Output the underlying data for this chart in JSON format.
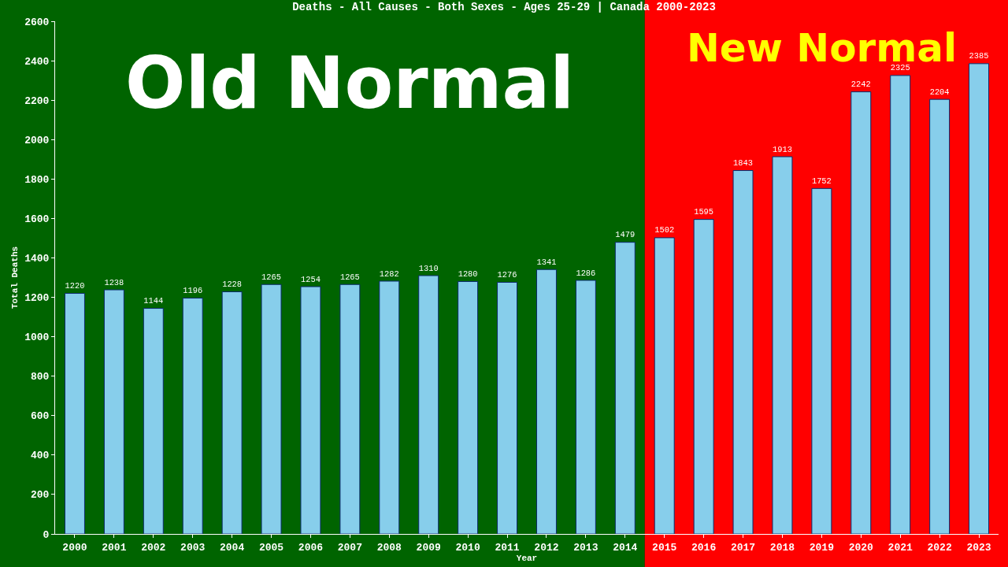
{
  "chart_data": {
    "type": "bar",
    "title": "Deaths - All Causes - Both Sexes - Ages 25-29 | Canada 2000-2023",
    "xlabel": "Year",
    "ylabel": "Total Deaths",
    "categories": [
      "2000",
      "2001",
      "2002",
      "2003",
      "2004",
      "2005",
      "2006",
      "2007",
      "2008",
      "2009",
      "2010",
      "2011",
      "2012",
      "2013",
      "2014",
      "2015",
      "2016",
      "2017",
      "2018",
      "2019",
      "2020",
      "2021",
      "2022",
      "2023"
    ],
    "values": [
      1220,
      1238,
      1144,
      1196,
      1228,
      1265,
      1254,
      1265,
      1282,
      1310,
      1280,
      1276,
      1341,
      1286,
      1479,
      1502,
      1595,
      1843,
      1913,
      1752,
      2242,
      2325,
      2204,
      2385
    ],
    "color": "#87ceeb",
    "data_labels": true,
    "ylim": [
      0,
      2600
    ],
    "yticks": [
      0,
      200,
      400,
      600,
      800,
      1000,
      1200,
      1400,
      1600,
      1800,
      2000,
      2200,
      2400,
      2600
    ],
    "grid": false,
    "bands": [
      {
        "axis": "x",
        "from": "2000",
        "to": "2014",
        "label": "Old Normal",
        "color": "#006400"
      },
      {
        "axis": "x",
        "from": "2015",
        "to": "2023",
        "label": "New Normal",
        "color": "#ff0000"
      }
    ]
  }
}
